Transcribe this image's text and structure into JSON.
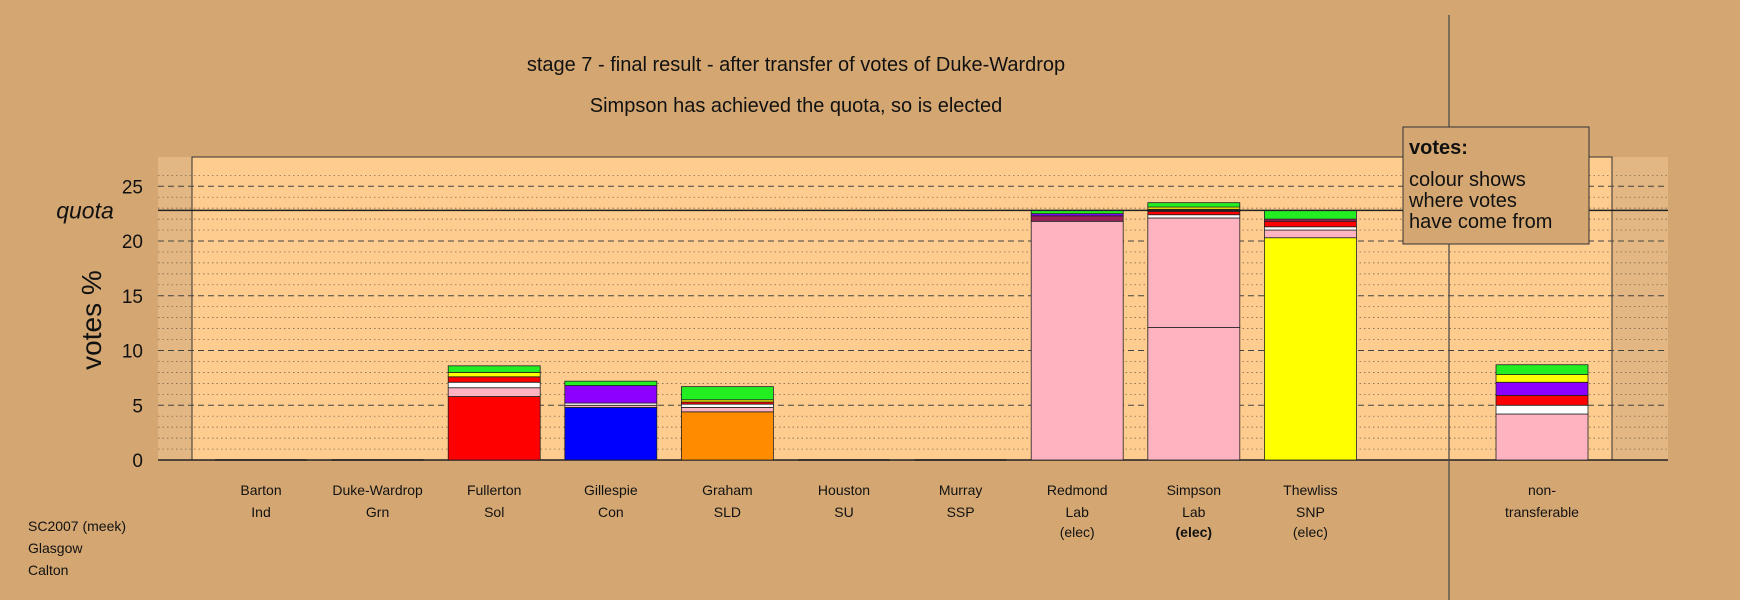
{
  "chart_data": {
    "type": "bar",
    "stacked": true,
    "title": "stage 7 - final result - after transfer of votes of Duke-Wardrop",
    "subtitle": "Simpson has achieved the quota, so is elected",
    "ylabel": "votes %",
    "ylim": [
      0,
      28
    ],
    "yticks": [
      "0",
      "5",
      "10",
      "15",
      "20",
      "25"
    ],
    "quota_label": "quota",
    "quota_value": 22.8,
    "grid": true,
    "legend": {
      "position": "top-right",
      "title": "votes:",
      "lines": [
        "colour shows",
        "where votes",
        "have come from"
      ]
    },
    "candidates": [
      {
        "name": "Barton",
        "party": "Ind",
        "status": "",
        "segments": []
      },
      {
        "name": "Duke-Wardrop",
        "party": "Grn",
        "status": "",
        "segments": []
      },
      {
        "name": "Fullerton",
        "party": "Sol",
        "status": "",
        "segments": [
          {
            "color": "#ff0000",
            "value": 5.8
          },
          {
            "color": "#ffb3c1",
            "value": 0.8
          },
          {
            "color": "#ffffff",
            "value": 0.5
          },
          {
            "color": "#ff0000",
            "value": 0.5
          },
          {
            "color": "#ffff00",
            "value": 0.4
          },
          {
            "color": "#22ee22",
            "value": 0.6
          }
        ]
      },
      {
        "name": "Gillespie",
        "party": "Con",
        "status": "",
        "segments": [
          {
            "color": "#0000ff",
            "value": 4.8
          },
          {
            "color": "#ffb3c1",
            "value": 0.2
          },
          {
            "color": "#ffffff",
            "value": 0.2
          },
          {
            "color": "#8b00ff",
            "value": 1.6
          },
          {
            "color": "#22ee22",
            "value": 0.4
          }
        ]
      },
      {
        "name": "Graham",
        "party": "SLD",
        "status": "",
        "segments": [
          {
            "color": "#ff8c00",
            "value": 4.4
          },
          {
            "color": "#ffb3c1",
            "value": 0.4
          },
          {
            "color": "#ffffff",
            "value": 0.3
          },
          {
            "color": "#ff0000",
            "value": 0.2
          },
          {
            "color": "#ffff00",
            "value": 0.2
          },
          {
            "color": "#22ee22",
            "value": 1.2
          }
        ]
      },
      {
        "name": "Houston",
        "party": "SU",
        "status": "",
        "segments": []
      },
      {
        "name": "Murray",
        "party": "SSP",
        "status": "",
        "segments": []
      },
      {
        "name": "Redmond",
        "party": "Lab",
        "status": "(elec)",
        "segments": [
          {
            "color": "#ffb3c1",
            "value": 21.8
          },
          {
            "color": "#9c1f5c",
            "value": 0.5
          },
          {
            "color": "#8b00ff",
            "value": 0.2
          },
          {
            "color": "#22ee22",
            "value": 0.3
          }
        ]
      },
      {
        "name": "Simpson",
        "party": "Lab",
        "status": "(elec)",
        "status_bold": true,
        "segments": [
          {
            "color": "#ffb3c1",
            "value": 12.1
          },
          {
            "color": "#ffb3c1",
            "value": 10.0
          },
          {
            "color": "#ffffff",
            "value": 0.3
          },
          {
            "color": "#ff0000",
            "value": 0.3
          },
          {
            "color": "#9c1f5c",
            "value": 0.2
          },
          {
            "color": "#ffff00",
            "value": 0.2
          },
          {
            "color": "#22ee22",
            "value": 0.4
          }
        ]
      },
      {
        "name": "Thewliss",
        "party": "SNP",
        "status": "(elec)",
        "segments": [
          {
            "color": "#ffff00",
            "value": 20.3
          },
          {
            "color": "#ffb3c1",
            "value": 0.7
          },
          {
            "color": "#ffffff",
            "value": 0.3
          },
          {
            "color": "#ff0000",
            "value": 0.5
          },
          {
            "color": "#9c1f5c",
            "value": 0.2
          },
          {
            "color": "#22ee22",
            "value": 0.8
          }
        ]
      }
    ],
    "non_transferable": {
      "name": "non-",
      "party": "transferable",
      "segments": [
        {
          "color": "#ffb3c1",
          "value": 4.2
        },
        {
          "color": "#ffffff",
          "value": 0.8
        },
        {
          "color": "#ff0000",
          "value": 0.9
        },
        {
          "color": "#8b00ff",
          "value": 1.2
        },
        {
          "color": "#ffff00",
          "value": 0.7
        },
        {
          "color": "#22ee22",
          "value": 0.9
        }
      ]
    }
  },
  "footer": {
    "lines": [
      "SC2007 (meek)",
      "Glasgow",
      "Calton"
    ]
  },
  "colors": {
    "background": "#d4a772",
    "panel": "#ffcc8f",
    "divider": "#444444"
  }
}
